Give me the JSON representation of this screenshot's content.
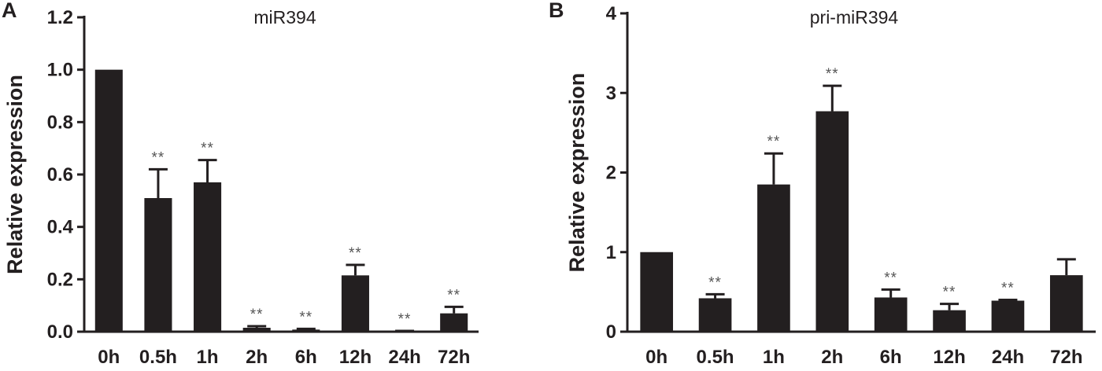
{
  "figure": {
    "background": "#ffffff",
    "bar_color": "#231f20"
  },
  "chart_data": [
    {
      "type": "bar",
      "panel_label": "A",
      "title": "miR394",
      "xlabel": "",
      "ylabel": "Relative expression",
      "categories": [
        "0h",
        "0.5h",
        "1h",
        "2h",
        "6h",
        "12h",
        "24h",
        "72h"
      ],
      "values": [
        1.0,
        0.51,
        0.57,
        0.015,
        0.008,
        0.215,
        0.002,
        0.07
      ],
      "errors": [
        0.0,
        0.11,
        0.085,
        0.006,
        0.003,
        0.04,
        0.001,
        0.025
      ],
      "significance": [
        "",
        "**",
        "**",
        "**",
        "**",
        "**",
        "**",
        "**"
      ],
      "ylim": [
        0,
        1.2
      ],
      "yticks": [
        "0.0",
        "0.2",
        "0.4",
        "0.6",
        "0.8",
        "1.0",
        "1.2"
      ],
      "grid": false,
      "legend": "none"
    },
    {
      "type": "bar",
      "panel_label": "B",
      "title": "pri-miR394",
      "xlabel": "",
      "ylabel": "Relative expression",
      "categories": [
        "0h",
        "0.5h",
        "1h",
        "2h",
        "6h",
        "12h",
        "24h",
        "72h"
      ],
      "values": [
        1.0,
        0.42,
        1.85,
        2.77,
        0.43,
        0.27,
        0.39,
        0.71
      ],
      "errors": [
        0.0,
        0.05,
        0.39,
        0.32,
        0.1,
        0.08,
        0.01,
        0.2
      ],
      "significance": [
        "",
        "**",
        "**",
        "**",
        "**",
        "**",
        "**",
        ""
      ],
      "ylim": [
        0,
        4
      ],
      "yticks": [
        "0",
        "1",
        "2",
        "3",
        "4"
      ],
      "grid": false,
      "legend": "none"
    }
  ]
}
